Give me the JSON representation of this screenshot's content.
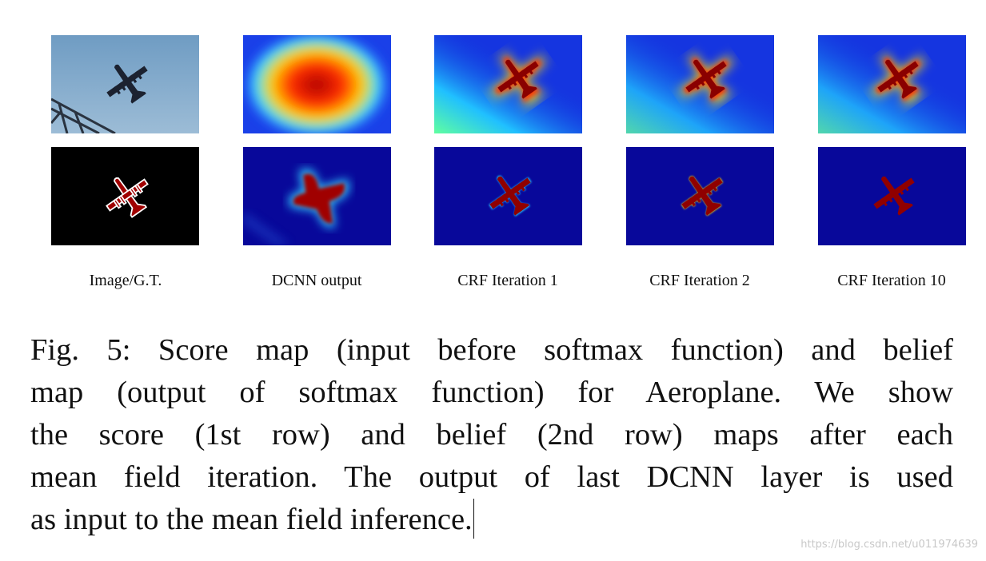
{
  "figure": {
    "panel_labels": [
      "Image/G.T.",
      "DCNN output",
      "CRF Iteration 1",
      "CRF Iteration 2",
      "CRF Iteration 10"
    ],
    "caption": {
      "lines": [
        "Fig. 5: Score map (input before softmax function) and belief",
        "map (output of softmax function) for Aeroplane. We show",
        "the score (1st row) and belief (2nd row) maps after each",
        "mean field iteration. The output of last DCNN layer is used",
        "as input to the mean field inference."
      ]
    }
  },
  "watermark": "https://blog.csdn.net/u011974639"
}
